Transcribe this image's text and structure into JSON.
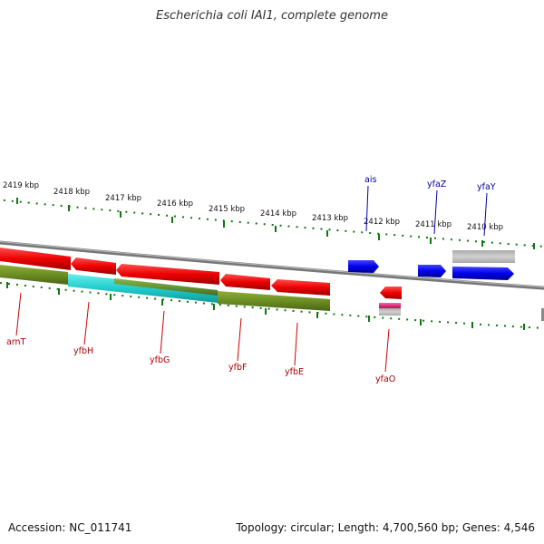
{
  "header": {
    "title": "Escherichia coli IAI1, complete genome"
  },
  "footer": {
    "accession": "Accession: NC_011741",
    "info": "Topology: circular; Length: 4,700,560 bp; Genes: 4,546"
  },
  "scale_labels": [
    "2419 kbp",
    "2418 kbp",
    "2417 kbp",
    "2416 kbp",
    "2415 kbp",
    "2414 kbp",
    "2413 kbp",
    "2412 kbp",
    "2411 kbp",
    "2410 kbp"
  ],
  "gene_labels": {
    "forward": [
      "ais",
      "yfaZ",
      "yfaY"
    ],
    "reverse": [
      "arnT",
      "yfbH",
      "yfbG",
      "yfbF",
      "yfbE",
      "yfaO"
    ]
  },
  "colors": {
    "forward_strand": "#0000ee",
    "reverse_strand": "#ee0000",
    "label_forward": "#000099",
    "label_reverse": "#aa0000",
    "tick": "#117711",
    "backbone": "#888888",
    "olive": "#6b8e23",
    "cyan": "#22cccc",
    "gray_feature": "#c0c0c0",
    "pink": "#dd3377"
  }
}
